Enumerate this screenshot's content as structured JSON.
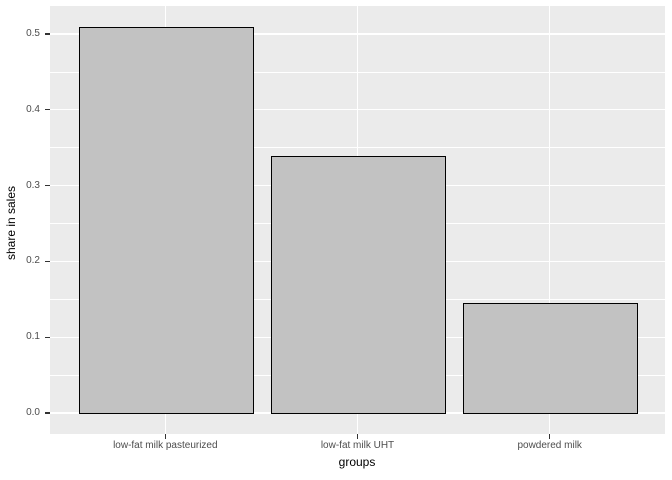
{
  "chart_data": {
    "type": "bar",
    "title": "",
    "xlabel": "groups",
    "ylabel": "share in sales",
    "categories": [
      "low-fat milk pasteurized",
      "low-fat milk UHT",
      "powdered milk"
    ],
    "values": [
      0.509,
      0.338,
      0.144
    ],
    "ylim": [
      0,
      0.537
    ],
    "yticks": [
      0.0,
      0.1,
      0.2,
      0.3,
      0.4,
      0.5
    ],
    "ytick_labels": [
      "0.0",
      "0.1",
      "0.2",
      "0.3",
      "0.4",
      "0.5"
    ],
    "minor_yticks": [
      0.05,
      0.15,
      0.25,
      0.35,
      0.45
    ],
    "grid": "major-and-minor-horizontal, major-vertical-at-categories",
    "legend": "none",
    "bar_width_fraction": 0.9,
    "colors": {
      "panel_background": "#EBEBEB",
      "gridline": "#FFFFFF",
      "bar_fill": "#C2C2C2",
      "bar_border": "#000000",
      "tick_label_text": "#4D4D4D",
      "axis_title_text": "#000000",
      "tick_mark": "#333333",
      "figure_background": "#FFFFFF"
    }
  }
}
